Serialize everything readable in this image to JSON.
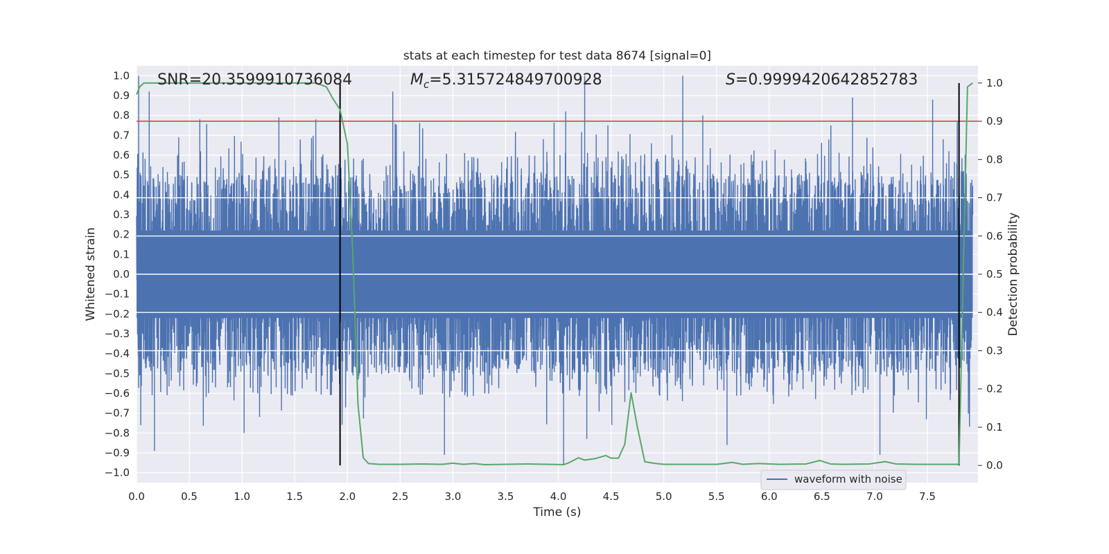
{
  "chart_data": {
    "type": "line",
    "title": "stats at each timestep for test data 8674 [signal=0]",
    "xlabel": "Time (s)",
    "ylabel_left": "Whitened strain",
    "ylabel_right": "Detection probability",
    "xlim": [
      0.0,
      7.98
    ],
    "ylim_left": [
      -1.05,
      1.05
    ],
    "ylim_right": [
      -0.045,
      1.045
    ],
    "x_ticks": [
      "0.0",
      "0.5",
      "1.0",
      "1.5",
      "2.0",
      "2.5",
      "3.0",
      "3.5",
      "4.0",
      "4.5",
      "5.0",
      "5.5",
      "6.0",
      "6.5",
      "7.0",
      "7.5"
    ],
    "y_left_ticks": [
      "1.0",
      "0.9",
      "0.8",
      "0.7",
      "0.6",
      "0.5",
      "0.4",
      "0.3",
      "0.2",
      "0.1",
      "0.0",
      "−0.1",
      "−0.2",
      "−0.3",
      "−0.4",
      "−0.5",
      "−0.6",
      "−0.7",
      "−0.8",
      "−0.9",
      "−1.0"
    ],
    "y_right_ticks": [
      "1.0",
      "0.9",
      "0.8",
      "0.7",
      "0.6",
      "0.5",
      "0.4",
      "0.3",
      "0.2",
      "0.1",
      "0.0"
    ],
    "grid": true,
    "legend_position": "bottom-right",
    "annotations": {
      "snr_prefix": "SNR=",
      "snr_value": "20.3599910736084",
      "mc_symbol": "M",
      "mc_subscript": "c",
      "mc_value": "=5.315724849700928",
      "s_symbol": "S",
      "s_value": "=0.9999420642852783"
    },
    "threshold_line": {
      "axis": "right",
      "value": 0.9,
      "color": "#c44e52"
    },
    "vertical_markers": [
      {
        "x": 1.93,
        "y_range_right": [
          0.0,
          1.0
        ],
        "color": "#000000"
      },
      {
        "x": 7.8,
        "y_range_right": [
          0.0,
          1.0
        ],
        "color": "#000000"
      }
    ],
    "series": [
      {
        "name": "waveform with noise",
        "axis": "left",
        "color": "#4c72b0",
        "style": "dense noise, envelope mostly within ±0.5, spikes up to ±1.0",
        "peak_spikes": [
          [
            0.02,
            1.0
          ],
          [
            0.04,
            -0.76
          ],
          [
            0.12,
            0.92
          ],
          [
            0.17,
            -0.89
          ],
          [
            0.4,
            0.69
          ],
          [
            0.6,
            0.78
          ],
          [
            1.02,
            -0.8
          ],
          [
            1.35,
            0.79
          ],
          [
            1.7,
            0.78
          ],
          [
            2.43,
            0.92
          ],
          [
            2.92,
            -0.91
          ],
          [
            4.07,
            0.82
          ],
          [
            4.05,
            -0.96
          ],
          [
            4.25,
            1.0
          ],
          [
            4.27,
            -0.83
          ],
          [
            4.47,
            0.75
          ],
          [
            5.18,
            1.0
          ],
          [
            5.37,
            0.8
          ],
          [
            5.6,
            -0.86
          ],
          [
            6.79,
            0.89
          ],
          [
            7.05,
            -0.91
          ],
          [
            7.55,
            0.88
          ],
          [
            7.65,
            0.68
          ]
        ]
      },
      {
        "name": "",
        "axis": "right",
        "color": "#55a868",
        "x": [
          0.0,
          0.03,
          0.07,
          0.2,
          0.5,
          1.0,
          1.5,
          1.7,
          1.8,
          1.86,
          1.93,
          2.0,
          2.05,
          2.1,
          2.15,
          2.2,
          2.3,
          2.5,
          2.7,
          2.9,
          3.0,
          3.1,
          3.2,
          3.3,
          3.5,
          3.7,
          3.9,
          4.05,
          4.1,
          4.19,
          4.25,
          4.35,
          4.45,
          4.5,
          4.57,
          4.63,
          4.69,
          4.75,
          4.82,
          4.9,
          5.0,
          5.2,
          5.5,
          5.65,
          5.75,
          5.9,
          6.1,
          6.35,
          6.48,
          6.58,
          6.7,
          6.95,
          7.1,
          7.2,
          7.4,
          7.6,
          7.8,
          7.88,
          7.93
        ],
        "y": [
          0.97,
          0.99,
          1.0,
          1.0,
          1.0,
          1.0,
          1.0,
          1.0,
          0.99,
          0.96,
          0.93,
          0.84,
          0.56,
          0.16,
          0.02,
          0.005,
          0.003,
          0.003,
          0.004,
          0.003,
          0.006,
          0.003,
          0.005,
          0.002,
          0.003,
          0.004,
          0.003,
          0.002,
          0.007,
          0.02,
          0.014,
          0.018,
          0.026,
          0.019,
          0.019,
          0.055,
          0.19,
          0.1,
          0.01,
          0.006,
          0.003,
          0.003,
          0.003,
          0.008,
          0.003,
          0.005,
          0.003,
          0.004,
          0.013,
          0.004,
          0.003,
          0.004,
          0.01,
          0.004,
          0.003,
          0.003,
          0.003,
          0.99,
          1.0
        ]
      }
    ]
  }
}
